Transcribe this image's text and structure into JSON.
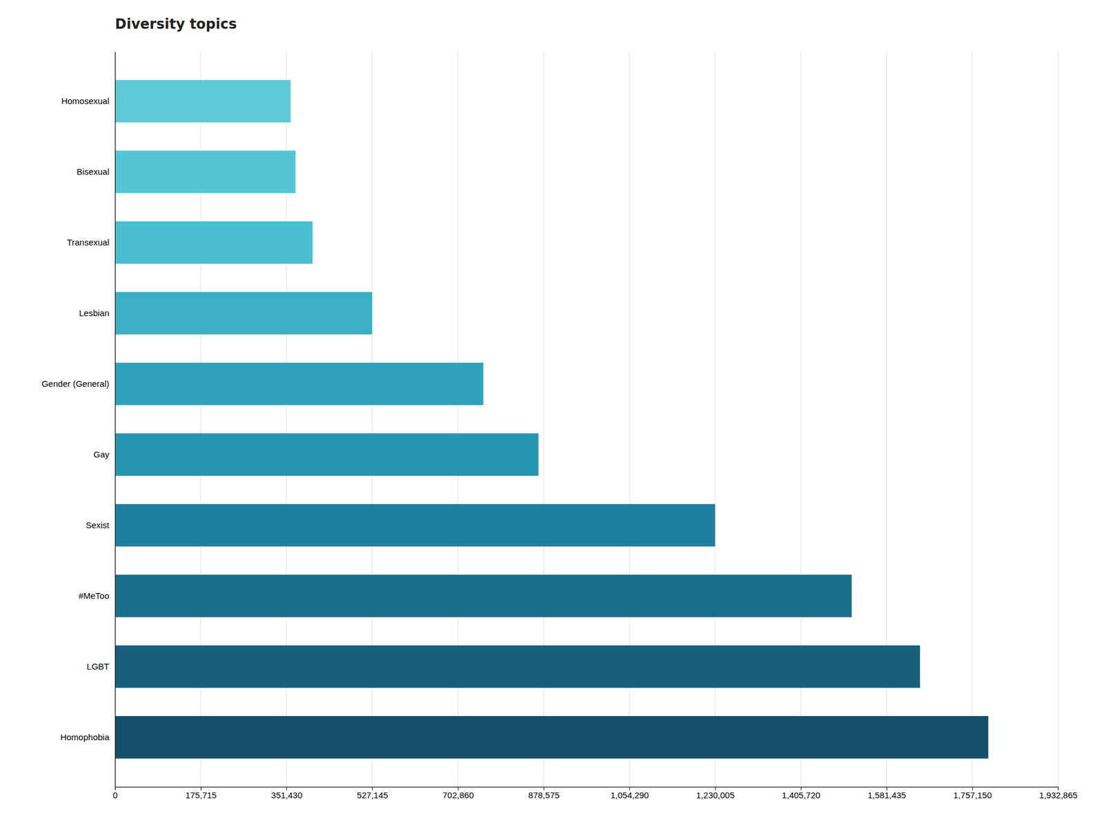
{
  "chart_data": {
    "type": "bar",
    "orientation": "horizontal",
    "title": "Diversity topics",
    "categories": [
      "Homosexual",
      "Bisexual",
      "Transexual",
      "Lesbian",
      "Gender (General)",
      "Gay",
      "Sexist",
      "#MeToo",
      "LGBT",
      "Homophobia"
    ],
    "values": [
      360000,
      370000,
      405000,
      527000,
      755000,
      868000,
      1230000,
      1510000,
      1650000,
      1790000
    ],
    "colors": [
      "#5ecad8",
      "#55c4d4",
      "#4abfd0",
      "#3bafc4",
      "#2fa3bc",
      "#2896b0",
      "#1f7fa0",
      "#1a6e8c",
      "#175f7a",
      "#154f6a"
    ],
    "xlim": [
      0,
      1932865
    ],
    "xticks": [
      0,
      {
        "value": 175715,
        "label": "175,715"
      },
      {
        "value": 351430,
        "label": "351,430"
      },
      {
        "value": 527145,
        "label": "527,145"
      },
      {
        "value": 702860,
        "label": "702,860"
      },
      {
        "value": 878575,
        "label": "878,575"
      },
      {
        "value": 1054290,
        "label": "1,054,290"
      },
      {
        "value": 1230005,
        "label": "1,230,005"
      },
      {
        "value": 1405720,
        "label": "1,405,720"
      },
      {
        "value": 1581435,
        "label": "1,581,435"
      },
      {
        "value": 1757150,
        "label": "1,757,150"
      },
      {
        "value": 1932865,
        "label": "1,932,865"
      }
    ],
    "grid": true
  }
}
